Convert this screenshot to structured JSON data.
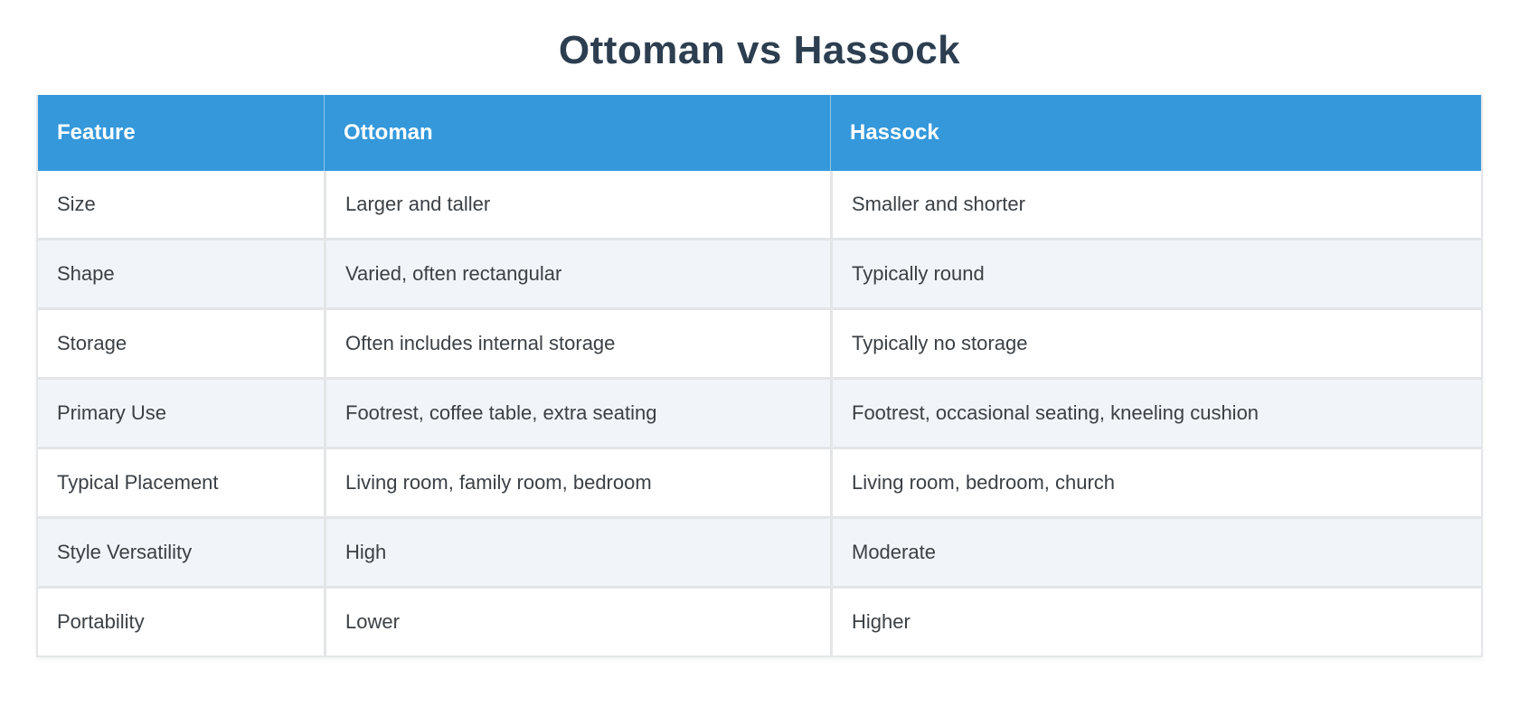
{
  "title": "Ottoman vs Hassock",
  "table": {
    "headers": [
      "Feature",
      "Ottoman",
      "Hassock"
    ],
    "rows": [
      [
        "Size",
        "Larger and taller",
        "Smaller and shorter"
      ],
      [
        "Shape",
        "Varied, often rectangular",
        "Typically round"
      ],
      [
        "Storage",
        "Often includes internal storage",
        "Typically no storage"
      ],
      [
        "Primary Use",
        "Footrest, coffee table, extra seating",
        "Footrest, occasional seating, kneeling cushion"
      ],
      [
        "Typical Placement",
        "Living room, family room, bedroom",
        "Living room, bedroom, church"
      ],
      [
        "Style Versatility",
        "High",
        "Moderate"
      ],
      [
        "Portability",
        "Lower",
        "Higher"
      ]
    ]
  },
  "colors": {
    "header_bg": "#3498db",
    "header_text": "#ffffff",
    "title_text": "#2c3e50",
    "body_text": "#3b4045",
    "row_bg": "#ffffff",
    "row_alt_bg": "#f1f5f9",
    "border": "#e3e5e7"
  }
}
